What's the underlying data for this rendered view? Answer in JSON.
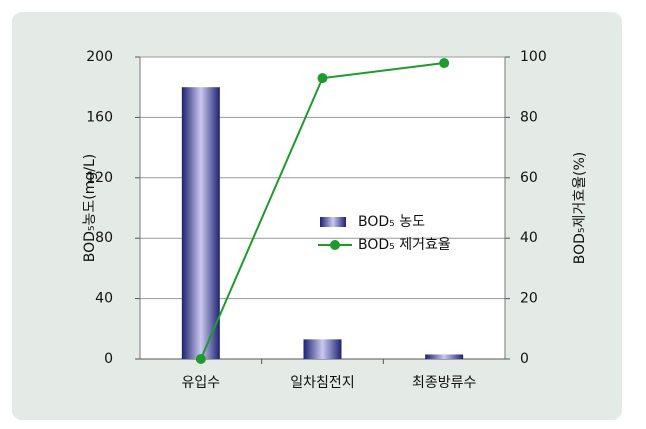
{
  "chart_data": {
    "type": "bar",
    "categories": [
      "유입수",
      "일차침전지",
      "최종방류수"
    ],
    "series": [
      {
        "name": "BOD₅ 농도",
        "type": "bar",
        "color": "#2b2f8a",
        "values": [
          180,
          13,
          3
        ]
      },
      {
        "name": "BOD₅ 제거효율",
        "type": "line",
        "axis": "y2",
        "color": "#1f9a2e",
        "values": [
          0,
          93,
          98
        ]
      }
    ],
    "y_label": "BOD₅농도(mg/L)",
    "y2_label": "BOD₅제거효율(%)",
    "ylim": [
      0,
      200
    ],
    "yticks": [
      0,
      40,
      80,
      120,
      160,
      200
    ],
    "y2lim": [
      0,
      100
    ],
    "y2ticks": [
      0,
      20,
      40,
      60,
      80,
      100
    ],
    "grid": true,
    "legend": "center"
  }
}
